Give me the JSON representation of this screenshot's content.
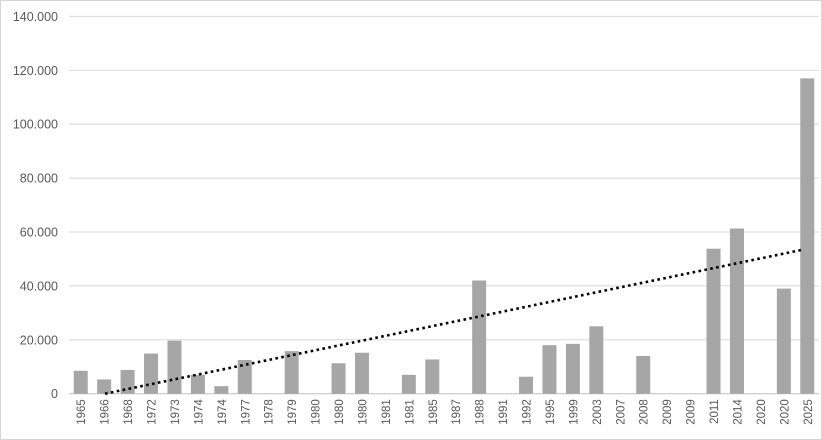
{
  "chart": {
    "background": "#ffffff",
    "border_color": "#d6d6d6",
    "bar_color": "#a6a6a6",
    "gridline_color": "#d9d9d9",
    "axis_line_color": "#bfbfbf",
    "label_color": "#595959",
    "trendline_color": "#000000"
  },
  "chart_data": {
    "type": "bar",
    "title": "",
    "xlabel": "",
    "ylabel": "",
    "categories": [
      "1965",
      "1966",
      "1968",
      "1972",
      "1973",
      "1974",
      "1974",
      "1977",
      "1978",
      "1979",
      "1980",
      "1980",
      "1980",
      "1981",
      "1981",
      "1985",
      "1987",
      "1988",
      "1991",
      "1992",
      "1995",
      "1999",
      "2003",
      "2007",
      "2008",
      "2009",
      "2009",
      "2011",
      "2014",
      "2020",
      "2020",
      "2025"
    ],
    "values": [
      8500,
      5300,
      8800,
      14900,
      19700,
      7000,
      2800,
      12500,
      0,
      15800,
      0,
      11300,
      15200,
      0,
      7000,
      12700,
      0,
      42000,
      0,
      6300,
      18000,
      18500,
      25000,
      0,
      14000,
      0,
      0,
      53800,
      61300,
      0,
      39000,
      117000
    ],
    "ylim": [
      0,
      140000
    ],
    "y_tick_step": 20000,
    "y_tick_labels": [
      "0",
      "20.000",
      "40.000",
      "60.000",
      "80.000",
      "100.000",
      "120.000",
      "140.000"
    ],
    "x_tick_rotation": -90,
    "grid": true,
    "legend": false,
    "trendline": {
      "style": "dotted",
      "start": {
        "x_frac": 0.048,
        "value": 0
      },
      "end": {
        "x_frac": 0.976,
        "value": 53300
      }
    }
  }
}
